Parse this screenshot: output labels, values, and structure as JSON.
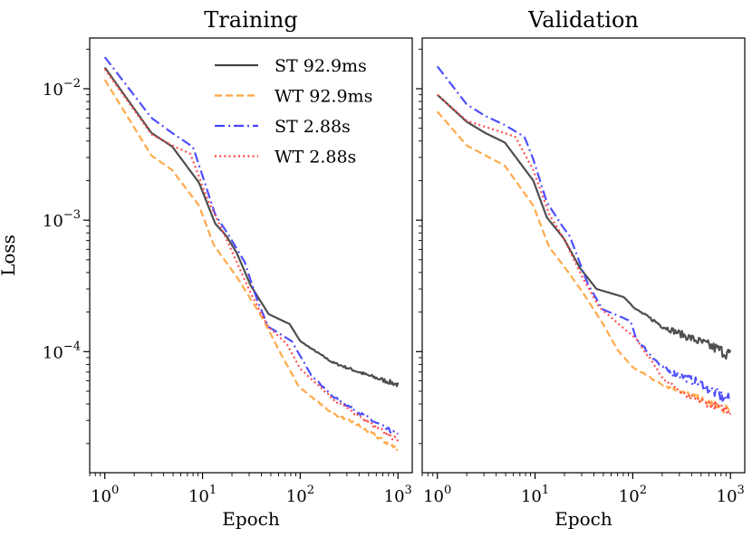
{
  "chart_data": [
    {
      "type": "line",
      "title": "Training",
      "xlabel": "Epoch",
      "ylabel": "Loss",
      "xscale": "log",
      "yscale": "log",
      "xlim": [
        0.7,
        1400
      ],
      "ylim": [
        1.2e-05,
        0.0243
      ],
      "xticks": [
        {
          "base": "10",
          "exp": "0",
          "value": 1
        },
        {
          "base": "10",
          "exp": "1",
          "value": 10
        },
        {
          "base": "10",
          "exp": "2",
          "value": 100
        },
        {
          "base": "10",
          "exp": "3",
          "value": 1000
        }
      ],
      "yticks": [
        {
          "base": "10",
          "exp": "−2",
          "value": 0.01
        },
        {
          "base": "10",
          "exp": "−3",
          "value": 0.001
        },
        {
          "base": "10",
          "exp": "−4",
          "value": 0.0001
        }
      ],
      "grid": false,
      "legend": {
        "position": "top-right",
        "entries": [
          "ST 92.9ms",
          "WT 92.9ms",
          "ST 2.88s",
          "WT 2.88s"
        ]
      },
      "series": [
        {
          "name": "ST 92.9ms",
          "color": "#444444",
          "style": "solid",
          "x": [
            1,
            3,
            4.9,
            9.2,
            13.5,
            17.5,
            22.5,
            31,
            47.5,
            78,
            100,
            213,
            465,
            1000
          ],
          "y": [
            0.0145,
            0.00461,
            0.00363,
            0.00193,
            0.00094,
            0.00076,
            0.00056,
            0.00032,
            0.000193,
            0.000162,
            0.00012,
            8.3e-05,
            6.7e-05,
            5.6e-05
          ]
        },
        {
          "name": "WT 92.9ms",
          "color": "#ffa540",
          "style": "dashed",
          "x": [
            1,
            3,
            4.9,
            9.2,
            13,
            23,
            41,
            63,
            97,
            213,
            350,
            1000
          ],
          "y": [
            0.0117,
            0.0031,
            0.0024,
            0.00129,
            0.00065,
            0.00036,
            0.00018,
            9.7e-05,
            5.4e-05,
            3.4e-05,
            2.9e-05,
            1.8e-05
          ]
        },
        {
          "name": "ST 2.88s",
          "color": "#4444ff",
          "style": "dashdot",
          "x": [
            1,
            3,
            4.9,
            8,
            13.5,
            18.7,
            27,
            36,
            47,
            82,
            128,
            213,
            465,
            1000
          ],
          "y": [
            0.0174,
            0.006,
            0.0046,
            0.0036,
            0.0011,
            0.00076,
            0.00048,
            0.00025,
            0.000155,
            0.00012,
            6.7e-05,
            4.6e-05,
            3.2e-05,
            2.3e-05
          ]
        },
        {
          "name": "WT 2.88s",
          "color": "#ff4444",
          "style": "dotted",
          "x": [
            1,
            3,
            4.9,
            7.5,
            11,
            17.5,
            31,
            47,
            73,
            100,
            213,
            465,
            1000
          ],
          "y": [
            0.0141,
            0.0045,
            0.0037,
            0.0032,
            0.0015,
            0.00072,
            0.00028,
            0.000155,
            0.000114,
            7.4e-05,
            4.4e-05,
            3e-05,
            2.1e-05
          ]
        }
      ]
    },
    {
      "type": "line",
      "title": "Validation",
      "xlabel": "Epoch",
      "xscale": "log",
      "yscale": "log",
      "xlim": [
        0.7,
        1400
      ],
      "ylim": [
        1.2e-05,
        0.0243
      ],
      "xticks": [
        {
          "base": "10",
          "exp": "0",
          "value": 1
        },
        {
          "base": "10",
          "exp": "1",
          "value": 10
        },
        {
          "base": "10",
          "exp": "2",
          "value": 100
        },
        {
          "base": "10",
          "exp": "3",
          "value": 1000
        }
      ],
      "grid": false,
      "series": [
        {
          "name": "ST 92.9ms",
          "color": "#444444",
          "style": "solid",
          "x": [
            1,
            2,
            3.1,
            4.9,
            9.6,
            13.2,
            19.6,
            29,
            42.5,
            81,
            108,
            205,
            470,
            1000
          ],
          "y": [
            0.009,
            0.0056,
            0.0046,
            0.0039,
            0.002,
            0.00105,
            0.00073,
            0.00043,
            0.0003,
            0.00026,
            0.00021,
            0.000155,
            0.00012,
            9.5e-05
          ]
        },
        {
          "name": "WT 92.9ms",
          "color": "#ffa540",
          "style": "dashed",
          "x": [
            1,
            2,
            4.9,
            9.6,
            14,
            19.6,
            31,
            49,
            70,
            100,
            205,
            470,
            1000
          ],
          "y": [
            0.0067,
            0.0037,
            0.0026,
            0.00129,
            0.00062,
            0.00045,
            0.00028,
            0.000165,
            0.000103,
            7.6e-05,
            5.6e-05,
            4.4e-05,
            3.5e-05
          ]
        },
        {
          "name": "ST 2.88s",
          "color": "#4444ff",
          "style": "dashdot",
          "x": [
            1,
            2,
            3.1,
            4.9,
            7.8,
            9.6,
            13.2,
            19.6,
            22.6,
            34.5,
            49,
            81,
            95,
            108,
            205,
            470,
            1000
          ],
          "y": [
            0.0148,
            0.0076,
            0.0062,
            0.0053,
            0.0043,
            0.0029,
            0.00137,
            0.00087,
            0.00076,
            0.00033,
            0.00021,
            0.00018,
            0.00017,
            0.000126,
            7.4e-05,
            5.8e-05,
            4.2e-05
          ]
        },
        {
          "name": "WT 2.88s",
          "color": "#ff4444",
          "style": "dotted",
          "x": [
            1,
            2,
            4.9,
            6.3,
            9.6,
            14,
            19.6,
            31,
            45,
            81,
            108,
            205,
            350,
            1000
          ],
          "y": [
            0.009,
            0.0057,
            0.0046,
            0.0043,
            0.0024,
            0.0011,
            0.00073,
            0.00036,
            0.00022,
            0.00015,
            0.000126,
            6.3e-05,
            4.6e-05,
            3.5e-05
          ]
        }
      ]
    }
  ]
}
